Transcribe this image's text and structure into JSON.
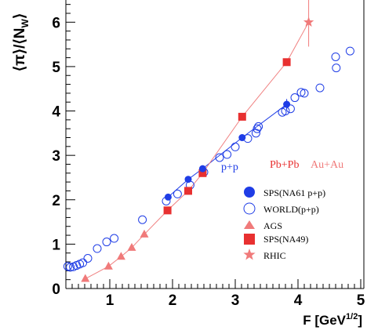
{
  "chart_data": {
    "type": "scatter",
    "xlabel_main": "F [GeV",
    "xlabel_sup": "1/2",
    "xlabel_close": "]",
    "ylabel_main": "⟨π⟩/⟨N",
    "ylabel_sub": "W",
    "ylabel_close": "⟩",
    "xlim": [
      0.3,
      5.05
    ],
    "ylim": [
      0,
      6.5
    ],
    "x_ticks": [
      "1",
      "2",
      "3",
      "4",
      "5"
    ],
    "y_ticks": [
      "0",
      "1",
      "2",
      "3",
      "4",
      "5",
      "6"
    ],
    "grid": false,
    "legend": {
      "placement": "center-right",
      "heading_pp": "p+p",
      "heading_pbpb": "Pb+Pb",
      "heading_auau": "Au+Au",
      "entries": [
        "SPS(NA61 p+p)",
        "WORLD(p+p)",
        "AGS",
        "SPS(NA49)",
        "RHIC"
      ]
    },
    "colors": {
      "pp": "#1f3de6",
      "aa": "#e83030",
      "aa_light": "#f07a7a",
      "aa_line": "#f08080"
    },
    "series": [
      {
        "name": "SPS(NA61 p+p)",
        "marker": "filled-circle",
        "x": [
          1.93,
          2.25,
          2.48,
          3.11,
          3.82
        ],
        "y": [
          2.06,
          2.46,
          2.7,
          3.4,
          4.15
        ],
        "err": [
          0.06,
          0.06,
          0.06,
          0.07,
          0.12
        ]
      },
      {
        "name": "WORLD(p+p)",
        "marker": "open-circle",
        "x": [
          0.33,
          0.37,
          0.42,
          0.47,
          0.52,
          0.57,
          0.65,
          0.8,
          0.95,
          1.07,
          1.52,
          1.9,
          2.08,
          2.28,
          2.5,
          2.75,
          2.87,
          3.0,
          3.2,
          3.33,
          3.35,
          3.37,
          3.75,
          3.8,
          3.88,
          3.95,
          4.05,
          4.1,
          4.35,
          4.6,
          4.61,
          4.83
        ],
        "y": [
          0.5,
          0.48,
          0.49,
          0.52,
          0.55,
          0.58,
          0.68,
          0.9,
          1.05,
          1.13,
          1.55,
          1.97,
          2.13,
          2.33,
          2.62,
          2.95,
          3.02,
          3.19,
          3.38,
          3.5,
          3.6,
          3.65,
          3.97,
          4.0,
          4.05,
          4.3,
          4.42,
          4.4,
          4.52,
          5.22,
          4.97,
          5.35
        ]
      },
      {
        "name": "AGS",
        "marker": "filled-triangle",
        "x": [
          0.61,
          0.98,
          1.18,
          1.35,
          1.55
        ],
        "y": [
          0.22,
          0.5,
          0.72,
          0.92,
          1.22
        ]
      },
      {
        "name": "SPS(NA49)",
        "marker": "filled-square",
        "x": [
          1.92,
          2.25,
          2.48,
          3.11,
          3.82
        ],
        "y": [
          1.76,
          2.2,
          2.6,
          3.87,
          5.1
        ]
      },
      {
        "name": "RHIC",
        "marker": "filled-star",
        "x": [
          4.17
        ],
        "y": [
          6.0
        ]
      }
    ]
  }
}
